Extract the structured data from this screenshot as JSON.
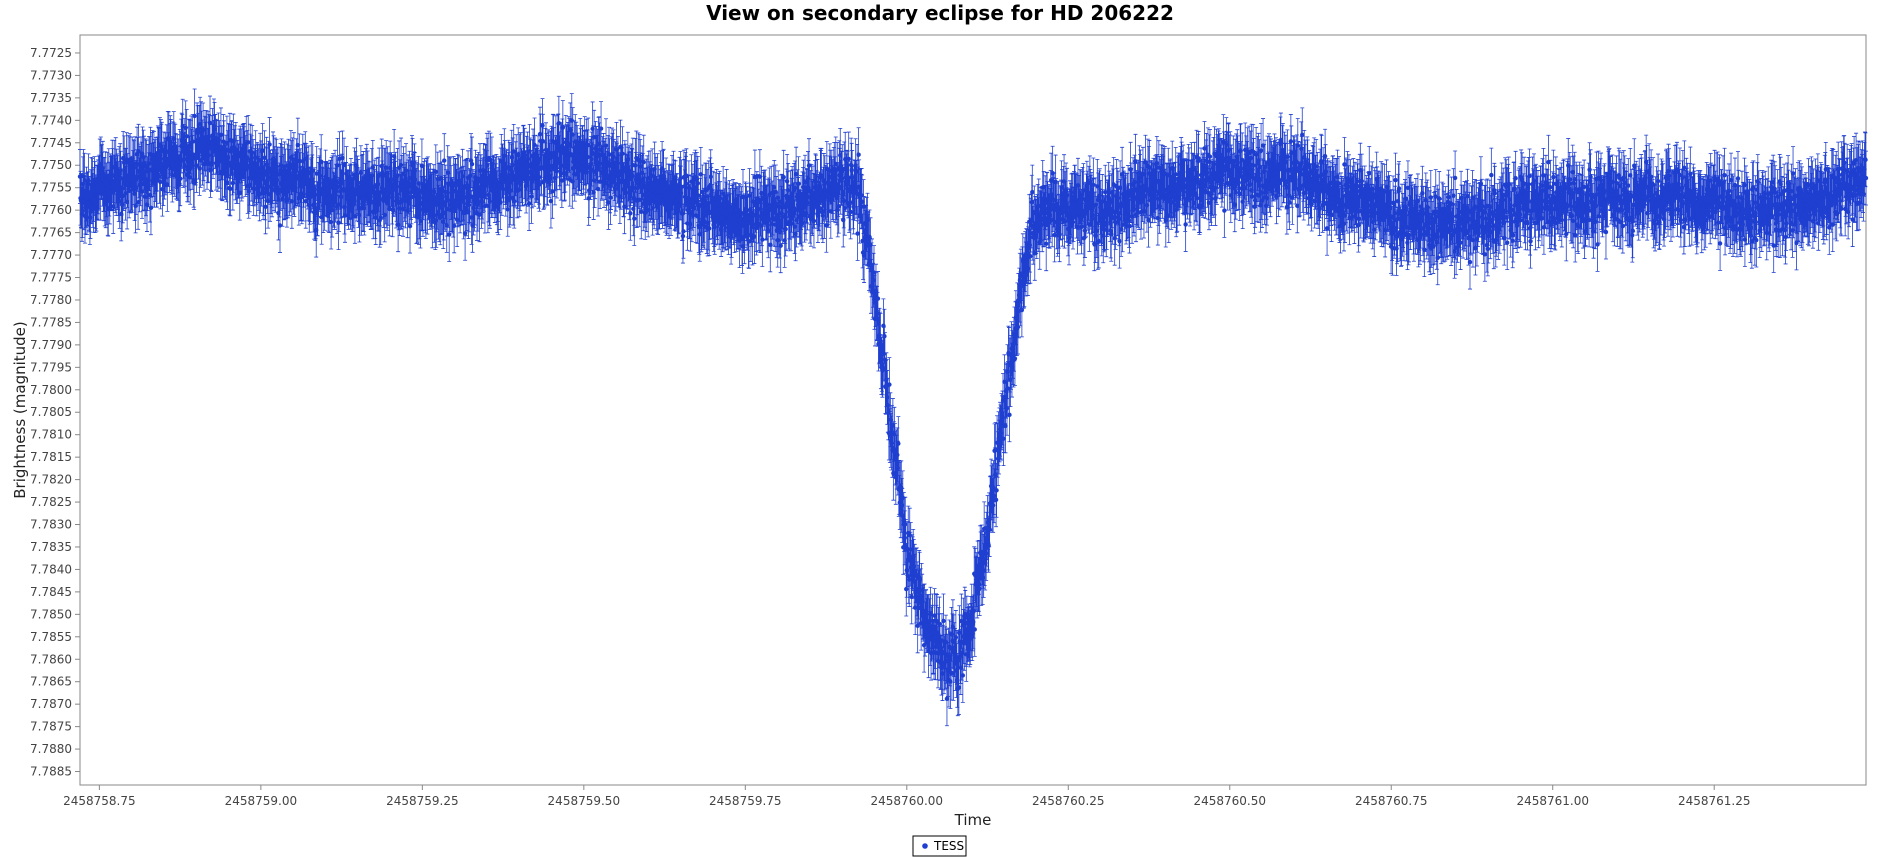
{
  "chart_data": {
    "type": "scatter",
    "title": "View on secondary eclipse for HD 206222",
    "xlabel": "Time",
    "ylabel": "Brightness (magnitude)",
    "xlim": [
      2458758.72,
      2458761.485
    ],
    "ylim": [
      7.7721,
      7.7888
    ],
    "y_inverted": true,
    "x_ticks": [
      2458758.75,
      2458759.0,
      2458759.25,
      2458759.5,
      2458759.75,
      2458760.0,
      2458760.25,
      2458760.5,
      2458760.75,
      2458761.0,
      2458761.25
    ],
    "x_tick_labels": [
      "2458758.75",
      "2458759.00",
      "2458759.25",
      "2458759.50",
      "2458759.75",
      "2458760.00",
      "2458760.25",
      "2458760.50",
      "2458760.75",
      "2458761.00",
      "2458761.25"
    ],
    "y_ticks": [
      7.7725,
      7.773,
      7.7735,
      7.774,
      7.7745,
      7.775,
      7.7755,
      7.776,
      7.7765,
      7.777,
      7.7775,
      7.778,
      7.7785,
      7.779,
      7.7795,
      7.78,
      7.7805,
      7.781,
      7.7815,
      7.782,
      7.7825,
      7.783,
      7.7835,
      7.784,
      7.7845,
      7.785,
      7.7855,
      7.786,
      7.7865,
      7.787,
      7.7875,
      7.788,
      7.7885
    ],
    "y_tick_labels": [
      "7.7725",
      "7.7730",
      "7.7735",
      "7.7740",
      "7.7745",
      "7.7750",
      "7.7755",
      "7.7760",
      "7.7765",
      "7.7770",
      "7.7775",
      "7.7780",
      "7.7785",
      "7.7790",
      "7.7795",
      "7.7800",
      "7.7805",
      "7.7810",
      "7.7815",
      "7.7820",
      "7.7825",
      "7.7830",
      "7.7835",
      "7.7840",
      "7.7845",
      "7.7850",
      "7.7855",
      "7.7860",
      "7.7865",
      "7.7870",
      "7.7875",
      "7.7880",
      "7.7885"
    ],
    "grid": false,
    "legend_position": "bottom-center",
    "series": [
      {
        "name": "TESS",
        "color": "#1f3fd0",
        "marker": "circle",
        "error_bars": true,
        "error_magnitude": 0.0006,
        "x": [
          2458758.72,
          2458758.78,
          2458758.85,
          2458758.92,
          2458759.0,
          2458759.1,
          2458759.2,
          2458759.3,
          2458759.4,
          2458759.48,
          2458759.55,
          2458759.65,
          2458759.75,
          2458759.85,
          2458759.92,
          2458759.94,
          2458759.96,
          2458759.98,
          2458760.0,
          2458760.03,
          2458760.06,
          2458760.08,
          2458760.1,
          2458760.12,
          2458760.14,
          2458760.16,
          2458760.18,
          2458760.2,
          2458760.22,
          2458760.3,
          2458760.4,
          2458760.5,
          2458760.6,
          2458760.7,
          2458760.8,
          2458760.9,
          2458761.0,
          2458761.1,
          2458761.2,
          2458761.3,
          2458761.4,
          2458761.485
        ],
        "y": [
          7.7757,
          7.7754,
          7.7749,
          7.7747,
          7.7752,
          7.7756,
          7.7756,
          7.7758,
          7.7752,
          7.7747,
          7.7752,
          7.7758,
          7.7762,
          7.7758,
          7.7753,
          7.7768,
          7.779,
          7.7813,
          7.7837,
          7.7852,
          7.786,
          7.7861,
          7.7852,
          7.7835,
          7.7815,
          7.7795,
          7.7775,
          7.7762,
          7.7759,
          7.776,
          7.7755,
          7.7752,
          7.7752,
          7.7758,
          7.7763,
          7.7762,
          7.7758,
          7.7758,
          7.7758,
          7.776,
          7.7758,
          7.7753
        ],
        "sampled_points": 3600,
        "scatter_sigma": 0.0006
      }
    ]
  }
}
